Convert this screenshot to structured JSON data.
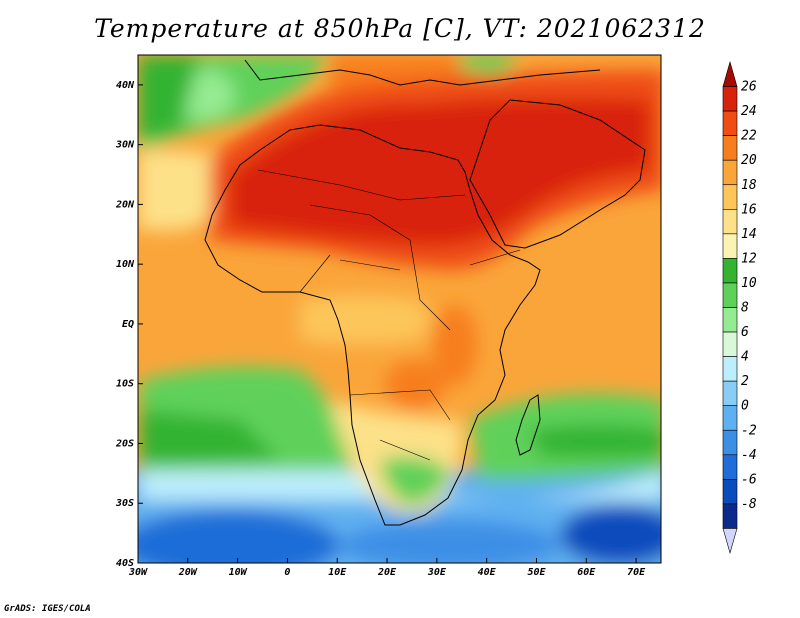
{
  "title": "Temperature at 850hPa [C], VT: 2021062312",
  "footer": "GrADS: IGES/COLA",
  "map": {
    "lon_range": [
      -30,
      75
    ],
    "lat_range": [
      -40,
      45
    ],
    "lon_ticks": [
      {
        "value": -30,
        "label": "30W"
      },
      {
        "value": -20,
        "label": "20W"
      },
      {
        "value": -10,
        "label": "10W"
      },
      {
        "value": 0,
        "label": "0"
      },
      {
        "value": 10,
        "label": "10E"
      },
      {
        "value": 20,
        "label": "20E"
      },
      {
        "value": 30,
        "label": "30E"
      },
      {
        "value": 40,
        "label": "40E"
      },
      {
        "value": 50,
        "label": "50E"
      },
      {
        "value": 60,
        "label": "60E"
      },
      {
        "value": 70,
        "label": "70E"
      }
    ],
    "lat_ticks": [
      {
        "value": 40,
        "label": "40N"
      },
      {
        "value": 30,
        "label": "30N"
      },
      {
        "value": 20,
        "label": "20N"
      },
      {
        "value": 10,
        "label": "10N"
      },
      {
        "value": 0,
        "label": "EQ"
      },
      {
        "value": -10,
        "label": "10S"
      },
      {
        "value": -20,
        "label": "20S"
      },
      {
        "value": -30,
        "label": "30S"
      },
      {
        "value": -40,
        "label": "40S"
      }
    ]
  },
  "colorbar": {
    "levels": [
      "26",
      "24",
      "22",
      "20",
      "18",
      "16",
      "14",
      "12",
      "10",
      "8",
      "6",
      "4",
      "2",
      "0",
      "-2",
      "-4",
      "-6",
      "-8"
    ],
    "colors": [
      "#a50a00",
      "#d8220c",
      "#ef4d13",
      "#f77e1f",
      "#faa53a",
      "#fcc65a",
      "#fde189",
      "#fbf3b3",
      "#33b331",
      "#5fd15a",
      "#95eb91",
      "#d8f8d8",
      "#bdeefb",
      "#89cdf6",
      "#5fb0f0",
      "#3d8fe6",
      "#1e6dd8",
      "#0b4cbd",
      "#0b2a8c",
      "#d2d6fa"
    ]
  }
}
